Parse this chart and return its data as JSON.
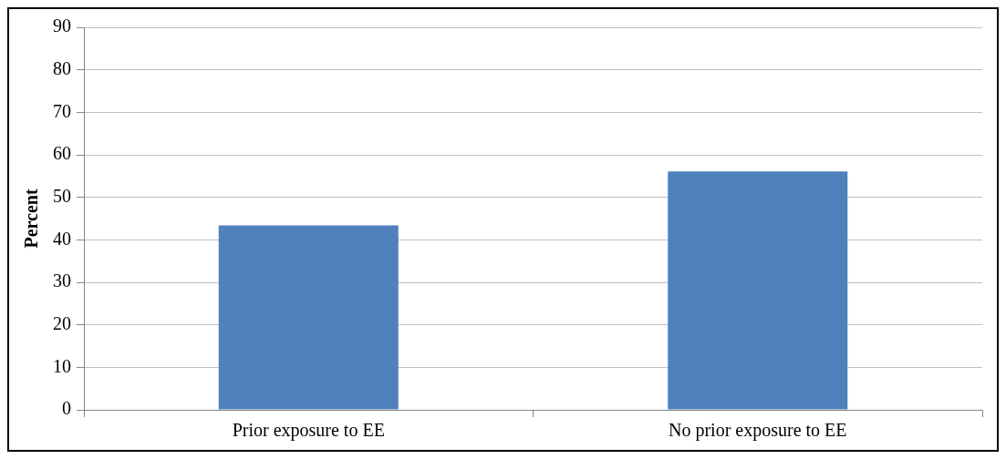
{
  "chart_data": {
    "type": "bar",
    "ylabel": "Percent",
    "categories": [
      "Prior exposure to EE",
      "No prior exposure to EE"
    ],
    "values": [
      43.4,
      56.1
    ],
    "color": "#4f81bd",
    "ylim": [
      0,
      90
    ],
    "yticks": [
      0,
      10,
      20,
      30,
      40,
      50,
      60,
      70,
      80,
      90
    ],
    "grid": "y",
    "legend": false
  }
}
